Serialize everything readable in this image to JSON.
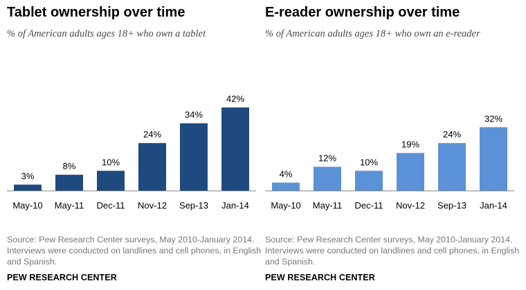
{
  "chart_data": [
    {
      "type": "bar",
      "title": "Tablet ownership over time",
      "subtitle": "% of American adults ages 18+ who own a tablet",
      "categories": [
        "May-10",
        "May-11",
        "Dec-11",
        "Nov-12",
        "Sep-13",
        "Jan-14"
      ],
      "values": [
        3,
        8,
        10,
        24,
        34,
        42
      ],
      "value_labels": [
        "3%",
        "8%",
        "10%",
        "24%",
        "34%",
        "42%"
      ],
      "color": "#1f4a7f",
      "xlabel": "",
      "ylabel": "",
      "ylim": [
        0,
        45
      ],
      "grid": false,
      "legend": "none"
    },
    {
      "type": "bar",
      "title": "E-reader ownership over time",
      "subtitle": "% of American adults ages 18+ who own an e-reader",
      "categories": [
        "May-10",
        "May-11",
        "Dec-11",
        "Nov-12",
        "Sep-13",
        "Jan-14"
      ],
      "values": [
        4,
        12,
        10,
        19,
        24,
        32
      ],
      "value_labels": [
        "4%",
        "12%",
        "10%",
        "19%",
        "24%",
        "32%"
      ],
      "color": "#5b91d6",
      "xlabel": "",
      "ylabel": "",
      "ylim": [
        0,
        45
      ],
      "grid": false,
      "legend": "none"
    }
  ],
  "footer": {
    "source": "Source: Pew Research Center surveys, May 2010-January 2014. Interviews were conducted on landlines and cell phones, in English and Spanish.",
    "brand": "PEW RESEARCH CENTER"
  },
  "colors": {
    "axis": "#888888",
    "label_text": "#000000",
    "source_text": "#777777"
  }
}
